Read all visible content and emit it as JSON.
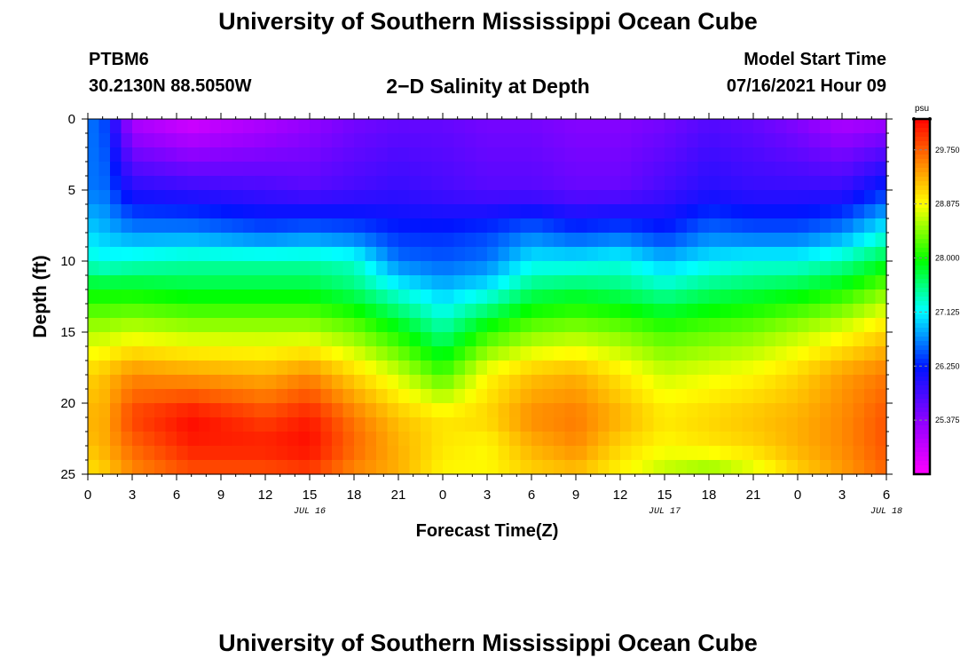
{
  "header": {
    "title": "University of Southern Mississippi Ocean Cube",
    "station": "PTBM6",
    "coords": "30.2130N  88.5050W",
    "subtitle": "2−D Salinity at Depth",
    "model_label": "Model Start Time",
    "model_time": "07/16/2021 Hour 09"
  },
  "footer": {
    "title": "University of Southern Mississippi Ocean Cube"
  },
  "chart_data": {
    "type": "heatmap",
    "title": "2-D Salinity at Depth",
    "xlabel": "Forecast Time(Z)",
    "ylabel": "Depth (ft)",
    "x_hours": [
      0,
      3,
      6,
      9,
      12,
      15,
      18,
      21,
      24,
      27,
      30,
      33,
      36,
      39,
      42,
      45,
      48,
      51,
      54
    ],
    "x_tick_labels": [
      "0",
      "3",
      "6",
      "9",
      "12",
      "15",
      "18",
      "21",
      "0",
      "3",
      "6",
      "9",
      "12",
      "15",
      "18",
      "21",
      "0",
      "3",
      "6"
    ],
    "date_labels": [
      {
        "hour": 15,
        "label": "JUL 16"
      },
      {
        "hour": 39,
        "label": "JUL 17"
      },
      {
        "hour": 54,
        "label": "JUL 18"
      }
    ],
    "xlim": [
      0,
      54
    ],
    "y_ticks": [
      0,
      5,
      10,
      15,
      20,
      25
    ],
    "ylim": [
      0,
      25
    ],
    "colorbar": {
      "unit": "psu",
      "range": [
        24.5,
        30.25
      ],
      "tick_values": [
        29.75,
        28.875,
        28.0,
        27.125,
        26.25,
        25.375
      ],
      "tick_labels": [
        "29.750",
        "28.875",
        "28.000",
        "27.125",
        "26.250",
        "25.375"
      ]
    },
    "salinity_grid": {
      "depths": [
        0,
        5,
        8,
        10,
        12,
        15,
        18,
        21,
        23,
        25
      ],
      "hours": [
        0,
        1,
        3,
        7,
        12,
        15,
        18,
        21,
        24,
        27,
        30,
        33,
        36,
        39,
        42,
        45,
        48,
        51,
        54
      ],
      "values": [
        [
          26.6,
          26.5,
          25.1,
          24.8,
          25.1,
          25.3,
          25.5,
          25.6,
          25.6,
          25.5,
          25.5,
          25.4,
          25.4,
          25.5,
          25.7,
          25.6,
          25.4,
          25.1,
          25.2
        ],
        [
          26.6,
          26.6,
          26.0,
          25.9,
          25.8,
          25.7,
          25.8,
          25.9,
          25.8,
          25.7,
          25.7,
          25.6,
          25.6,
          25.8,
          26.0,
          25.9,
          25.9,
          25.9,
          26.3
        ],
        [
          27.0,
          26.9,
          26.7,
          26.7,
          26.5,
          26.6,
          26.5,
          26.3,
          26.3,
          26.4,
          26.6,
          26.4,
          26.5,
          26.3,
          26.6,
          26.5,
          26.5,
          26.7,
          27.2
        ],
        [
          27.3,
          27.2,
          27.3,
          27.4,
          27.4,
          27.4,
          27.3,
          26.6,
          26.5,
          26.6,
          27.1,
          27.1,
          27.2,
          26.9,
          27.1,
          27.2,
          27.2,
          27.4,
          27.8
        ],
        [
          27.9,
          27.9,
          27.9,
          27.8,
          27.8,
          27.8,
          27.6,
          27.2,
          26.9,
          27.1,
          27.6,
          27.7,
          27.6,
          27.4,
          27.6,
          27.7,
          27.8,
          28.0,
          28.4
        ],
        [
          28.6,
          28.6,
          28.7,
          28.6,
          28.6,
          28.6,
          28.4,
          28.0,
          27.5,
          28.1,
          28.4,
          28.5,
          28.4,
          28.2,
          28.3,
          28.4,
          28.6,
          28.8,
          29.1
        ],
        [
          29.1,
          29.2,
          29.5,
          29.4,
          29.3,
          29.5,
          29.1,
          28.7,
          28.2,
          28.9,
          29.2,
          29.3,
          29.0,
          28.7,
          28.8,
          28.9,
          29.1,
          29.4,
          29.6
        ],
        [
          29.3,
          29.3,
          29.9,
          30.2,
          29.9,
          30.1,
          29.6,
          29.2,
          29.0,
          29.1,
          29.5,
          29.6,
          29.3,
          29.0,
          29.1,
          29.2,
          29.3,
          29.5,
          29.8
        ],
        [
          29.2,
          29.3,
          29.7,
          30.1,
          30.1,
          30.2,
          29.7,
          29.3,
          29.0,
          28.9,
          29.3,
          29.5,
          29.1,
          28.9,
          29.0,
          29.1,
          29.3,
          29.5,
          29.8
        ],
        [
          29.0,
          29.1,
          29.5,
          29.8,
          29.8,
          29.9,
          29.5,
          29.3,
          28.9,
          28.9,
          29.1,
          29.2,
          28.9,
          28.6,
          28.4,
          28.7,
          29.1,
          29.4,
          29.7
        ]
      ]
    }
  }
}
